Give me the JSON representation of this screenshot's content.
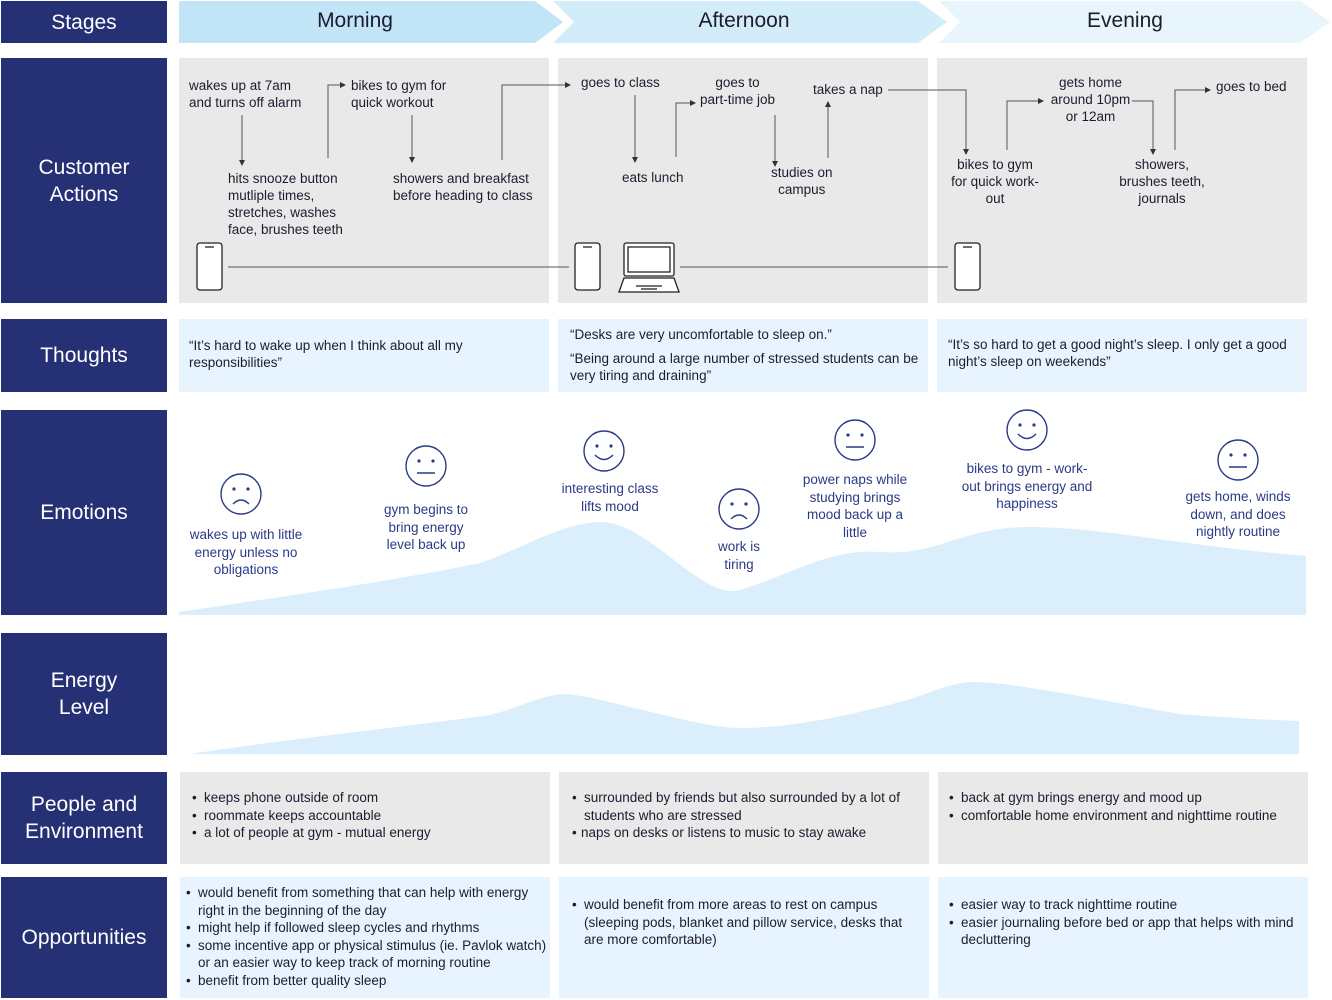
{
  "rows": {
    "stages": "Stages",
    "customer_actions": "Customer\nActions",
    "thoughts": "Thoughts",
    "emotions": "Emotions",
    "energy_level": "Energy\nLevel",
    "people_environment": "People and\nEnvironment",
    "opportunities": "Opportunities"
  },
  "stages": [
    "Morning",
    "Afternoon",
    "Evening"
  ],
  "colors": {
    "navy": "#253174",
    "stage_1": "#c5e6f8",
    "stage_2": "#d6eefa",
    "stage_3": "#e8f5fd",
    "grey_panel": "#e9e9e9",
    "blue_panel": "#e8f4fd",
    "wave": "#daeefb"
  },
  "actions": {
    "morning": [
      "wakes up at 7am\nand turns off alarm",
      "hits snooze button\nmutliple times,\nstretches, washes\nface, brushes teeth",
      "bikes to gym for\nquick workout",
      "showers and breakfast\nbefore heading to class"
    ],
    "afternoon": [
      "goes to class",
      "eats lunch",
      "goes to\npart-time job",
      "studies on\ncampus",
      "takes a nap"
    ],
    "evening": [
      "bikes to gym\nfor quick work-\nout",
      "gets home\naround 10pm\nor 12am",
      "showers,\nbrushes teeth,\njournals",
      "goes to bed"
    ],
    "devices": [
      "phone-icon",
      "phone-icon",
      "laptop-icon",
      "phone-icon"
    ]
  },
  "thoughts": {
    "morning": [
      "“It’s hard to wake up when I think about all my responsibilities”"
    ],
    "afternoon": [
      "“Desks are very uncomfortable to sleep on.”",
      "“Being around a large number of stressed students can be very tiring and draining”"
    ],
    "evening": [
      "“It’s so hard to get a good night’s sleep. I only get a good night’s sleep on weekends”"
    ]
  },
  "emotions": [
    {
      "face": "sad",
      "text": "wakes up with little\nenergy unless no\nobligations"
    },
    {
      "face": "neutral",
      "text": "gym begins to\nbring energy\nlevel back up"
    },
    {
      "face": "happy",
      "text": "interesting class\nlifts mood"
    },
    {
      "face": "sad",
      "text": "work is\ntiring"
    },
    {
      "face": "neutral",
      "text": "power naps while\nstudying brings\nmood back up a\nlittle"
    },
    {
      "face": "happy",
      "text": "bikes to gym - work-\nout brings energy and\nhappiness"
    },
    {
      "face": "neutral",
      "text": "gets home, winds\ndown, and does\nnightly routine"
    }
  ],
  "people_environment": {
    "morning": [
      "keeps phone outside of room",
      "roommate keeps accountable",
      "a lot of people at gym - mutual energy"
    ],
    "afternoon": [
      "surrounded by friends but also surrounded by a lot of students who are stressed",
      "naps on desks or listens to music to stay awake"
    ],
    "evening": [
      "back at gym brings energy and mood up",
      "comfortable home environment and nighttime routine"
    ]
  },
  "opportunities": {
    "morning": [
      "would benefit from something that can help with energy right in the beginning of the day",
      "might help if followed sleep cycles and rhythms",
      "some incentive app or physical stimulus (ie. Pavlok watch) or an easier way to keep track of morning routine",
      "benefit from better quality sleep"
    ],
    "afternoon": [
      "would benefit from more areas to rest on campus (sleeping pods, blanket and pillow service, desks that are more comfortable)"
    ],
    "evening": [
      "easier way to track nighttime routine",
      "easier journaling before bed or app that helps with mind decluttering"
    ]
  }
}
